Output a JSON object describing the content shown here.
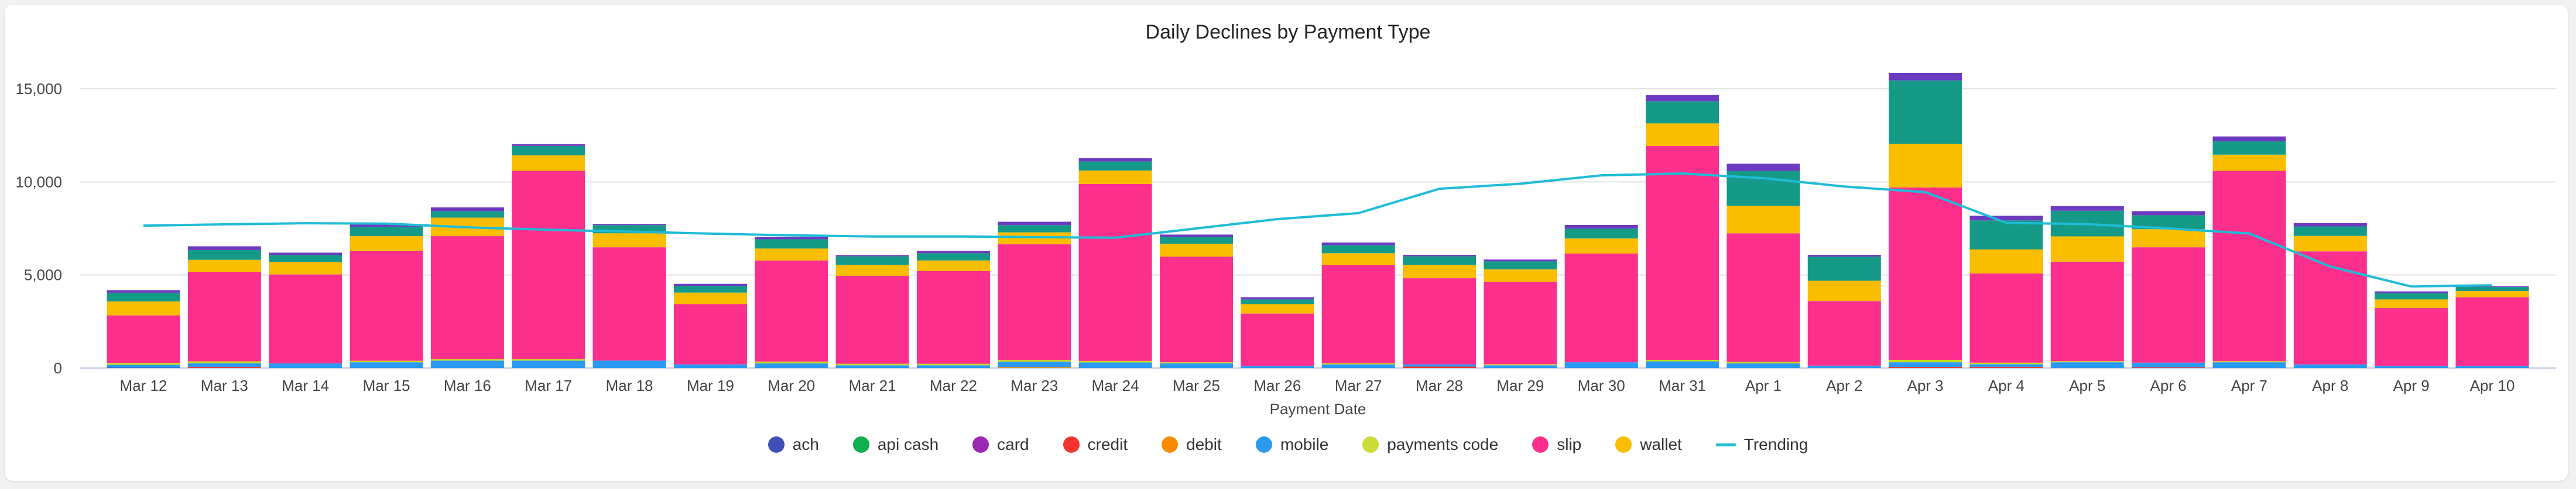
{
  "chart_data": {
    "type": "bar",
    "stacked": true,
    "title": "Daily Declines by Payment Type",
    "xlabel": "Payment Date",
    "ylabel": "",
    "ylim": [
      0,
      16500
    ],
    "yticks": [
      0,
      5000,
      10000,
      15000
    ],
    "ytick_labels": [
      "0",
      "5,000",
      "10,000",
      "15,000"
    ],
    "grid": true,
    "legend_position": "bottom",
    "categories": [
      "Mar 12",
      "Mar 13",
      "Mar 14",
      "Mar 15",
      "Mar 16",
      "Mar 17",
      "Mar 18",
      "Mar 19",
      "Mar 20",
      "Mar 21",
      "Mar 22",
      "Mar 23",
      "Mar 24",
      "Mar 25",
      "Mar 26",
      "Mar 27",
      "Mar 28",
      "Mar 29",
      "Mar 30",
      "Mar 31",
      "Apr 1",
      "Apr 2",
      "Apr 3",
      "Apr 4",
      "Apr 5",
      "Apr 6",
      "Apr 7",
      "Apr 8",
      "Apr 9",
      "Apr 10"
    ],
    "stack_order": [
      "ach",
      "credit",
      "debit",
      "mobile",
      "payments_code",
      "slip",
      "wallet",
      "api_cash",
      "card"
    ],
    "series": [
      {
        "key": "ach",
        "name": "ach",
        "color": "#3f51b5",
        "legend_color": "#3f51b5",
        "values": [
          30,
          0,
          0,
          0,
          0,
          0,
          0,
          0,
          0,
          0,
          0,
          0,
          0,
          0,
          0,
          0,
          0,
          0,
          0,
          0,
          0,
          0,
          0,
          0,
          0,
          0,
          0,
          0,
          0,
          0
        ]
      },
      {
        "key": "api_cash",
        "name": "api cash",
        "color": "#159a88",
        "legend_color": "#0fae4f",
        "values": [
          470,
          525,
          370,
          500,
          350,
          500,
          440,
          355,
          500,
          470,
          390,
          390,
          485,
          370,
          255,
          430,
          470,
          430,
          530,
          1190,
          1880,
          1290,
          3400,
          1560,
          1375,
          750,
          720,
          510,
          330,
          220
        ]
      },
      {
        "key": "card",
        "name": "card",
        "color": "#6c3ac0",
        "legend_color": "#9c27b0",
        "values": [
          130,
          200,
          130,
          150,
          200,
          100,
          60,
          115,
          120,
          60,
          115,
          180,
          185,
          130,
          110,
          140,
          80,
          100,
          200,
          335,
          390,
          100,
          400,
          250,
          250,
          220,
          260,
          180,
          100,
          30
        ]
      },
      {
        "key": "credit",
        "name": "credit",
        "color": "#f4352f",
        "legend_color": "#f4352f",
        "values": [
          0,
          60,
          0,
          0,
          0,
          0,
          0,
          0,
          0,
          0,
          0,
          0,
          0,
          0,
          0,
          0,
          80,
          0,
          0,
          0,
          0,
          0,
          60,
          60,
          0,
          40,
          0,
          0,
          0,
          0
        ]
      },
      {
        "key": "debit",
        "name": "debit",
        "color": "#fb8c00",
        "legend_color": "#fb8c00",
        "values": [
          0,
          0,
          0,
          0,
          0,
          0,
          0,
          0,
          0,
          0,
          0,
          50,
          0,
          0,
          0,
          0,
          0,
          0,
          0,
          0,
          0,
          0,
          0,
          0,
          0,
          0,
          0,
          0,
          0,
          0
        ]
      },
      {
        "key": "mobile",
        "name": "mobile",
        "color": "#2b9af3",
        "legend_color": "#2b9af3",
        "values": [
          150,
          200,
          250,
          310,
          400,
          400,
          400,
          200,
          250,
          150,
          150,
          300,
          300,
          250,
          120,
          200,
          120,
          150,
          310,
          360,
          250,
          130,
          250,
          150,
          310,
          250,
          310,
          200,
          120,
          120
        ]
      },
      {
        "key": "payments_code",
        "name": "payments code",
        "color": "#c6dc1c",
        "legend_color": "#cddc39",
        "values": [
          100,
          100,
          0,
          80,
          80,
          80,
          0,
          0,
          100,
          80,
          80,
          80,
          80,
          60,
          0,
          60,
          0,
          60,
          0,
          80,
          80,
          0,
          130,
          80,
          60,
          0,
          60,
          0,
          0,
          0
        ]
      },
      {
        "key": "slip",
        "name": "slip",
        "color": "#fd2f8d",
        "legend_color": "#fd2f8d",
        "values": [
          2550,
          4790,
          4780,
          5895,
          6610,
          10110,
          6090,
          3235,
          5430,
          4730,
          4980,
          6220,
          9510,
          5670,
          2810,
          5270,
          4630,
          4415,
          5840,
          11490,
          6910,
          3470,
          9260,
          4790,
          5345,
          6200,
          10220,
          6070,
          3110,
          3680
        ]
      },
      {
        "key": "wallet",
        "name": "wallet",
        "color": "#fbbd00",
        "legend_color": "#fbbd00",
        "values": [
          750,
          665,
          670,
          805,
          990,
          840,
          750,
          620,
          640,
          570,
          570,
          640,
          720,
          690,
          505,
          640,
          700,
          675,
          810,
          1210,
          1470,
          1090,
          2350,
          1290,
          1360,
          970,
          870,
          830,
          460,
          340
        ]
      }
    ],
    "trend": {
      "name": "Trending",
      "color": "#1ebcd6",
      "type": "line",
      "values": [
        7650,
        7720,
        7780,
        7760,
        7560,
        7430,
        7330,
        7220,
        7130,
        7070,
        7070,
        7030,
        7000,
        7500,
        8000,
        8320,
        9630,
        9900,
        10350,
        10450,
        10200,
        9750,
        9450,
        7800,
        7730,
        7500,
        7230,
        5450,
        4380,
        4450
      ]
    },
    "legend_order": [
      "ach",
      "api_cash",
      "card",
      "credit",
      "debit",
      "mobile",
      "payments_code",
      "slip",
      "wallet"
    ]
  }
}
